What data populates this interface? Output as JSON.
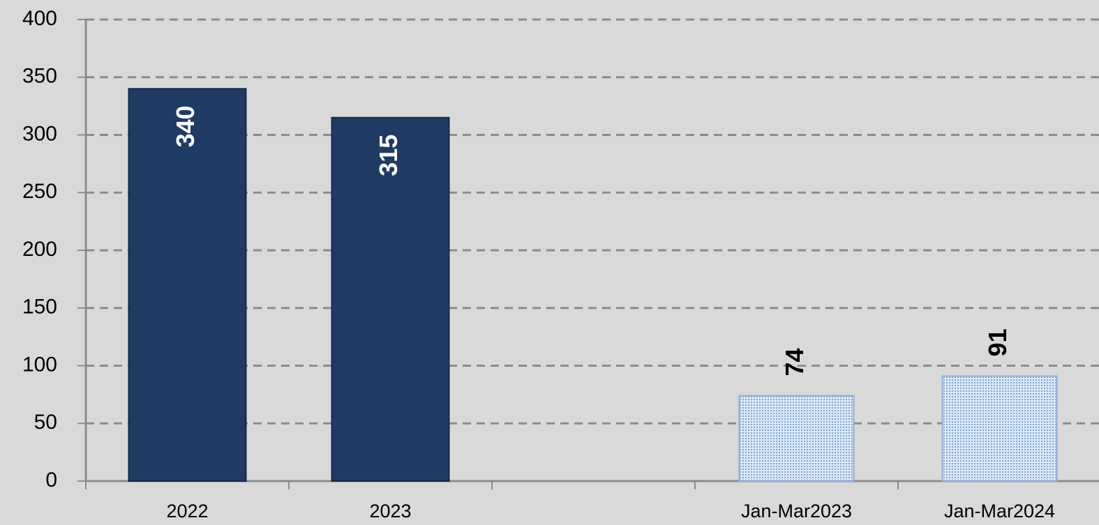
{
  "chart_data": {
    "type": "bar",
    "categories": [
      "2022",
      "2023",
      null,
      "Jan-Mar2023",
      "Jan-Mar2024"
    ],
    "values": [
      340,
      315,
      null,
      74,
      91
    ],
    "colors": [
      "#1f3b63",
      "#1f3b63",
      null,
      "#b4cdec",
      "#b4cdec"
    ],
    "ylim": [
      0,
      400
    ],
    "yticks": [
      0,
      50,
      100,
      150,
      200,
      250,
      300,
      350,
      400
    ],
    "grid": true
  }
}
